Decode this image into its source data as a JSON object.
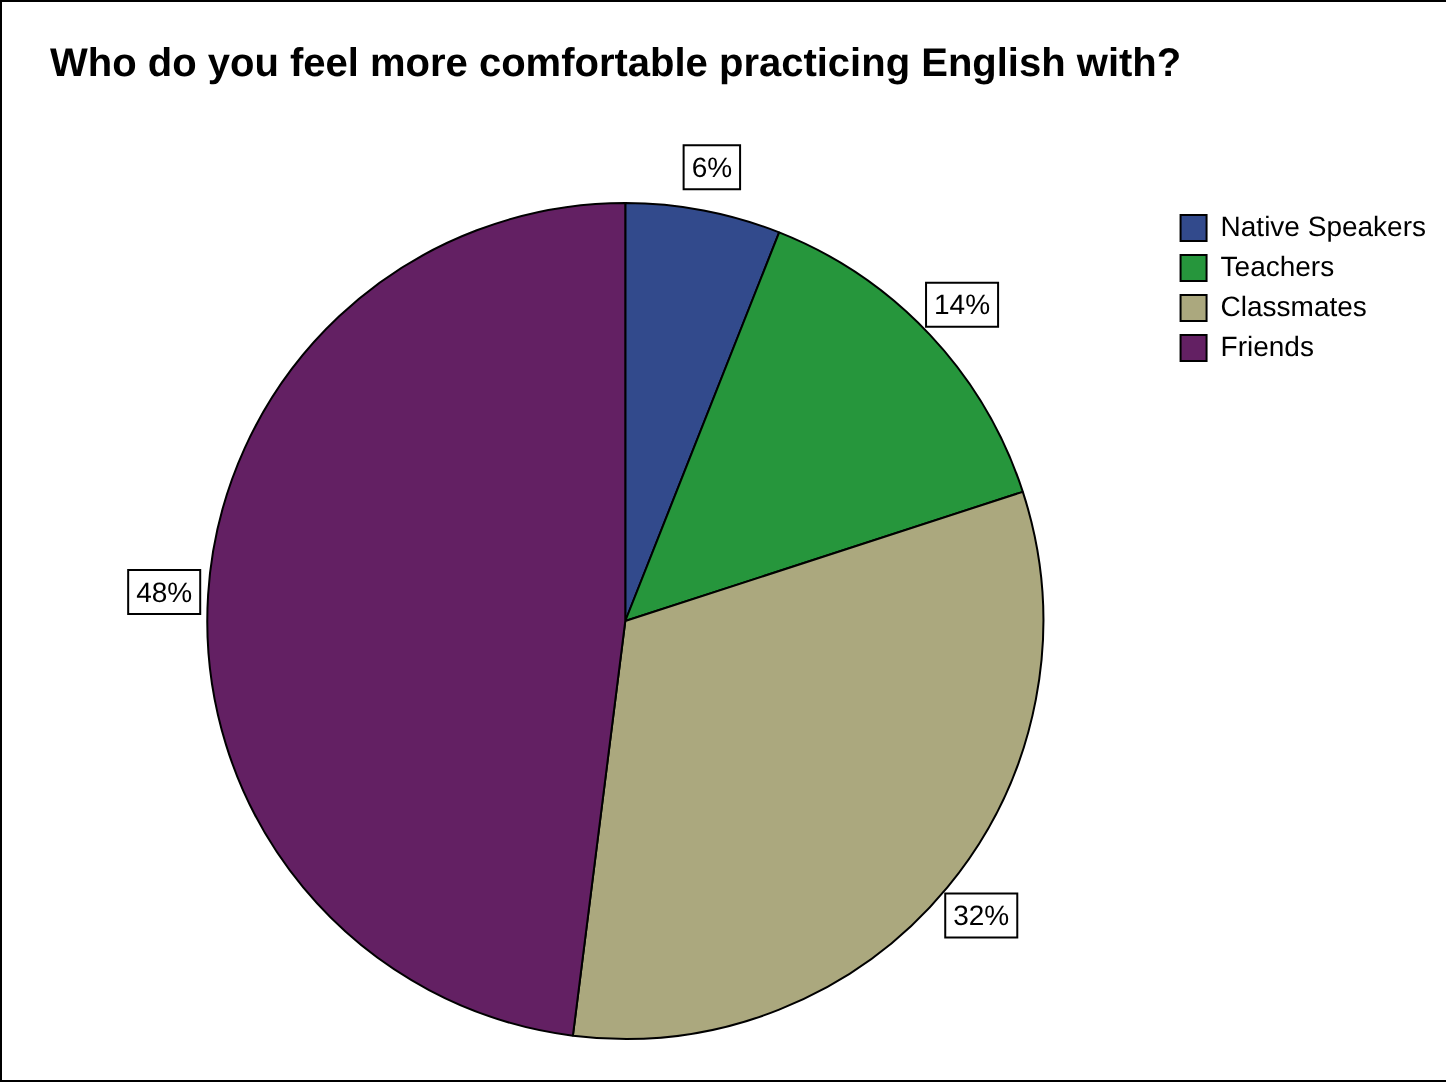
{
  "chart_data": {
    "type": "pie",
    "title": "Who do you feel more comfortable practicing English with?",
    "categories": [
      "Native Speakers",
      "Teachers",
      "Classmates",
      "Friends"
    ],
    "values": [
      6,
      14,
      32,
      48
    ],
    "value_labels": [
      "6%",
      "14%",
      "32%",
      "48%"
    ],
    "colors": [
      "#324a8c",
      "#26963c",
      "#aba87e",
      "#632063"
    ],
    "legend": "top right"
  }
}
